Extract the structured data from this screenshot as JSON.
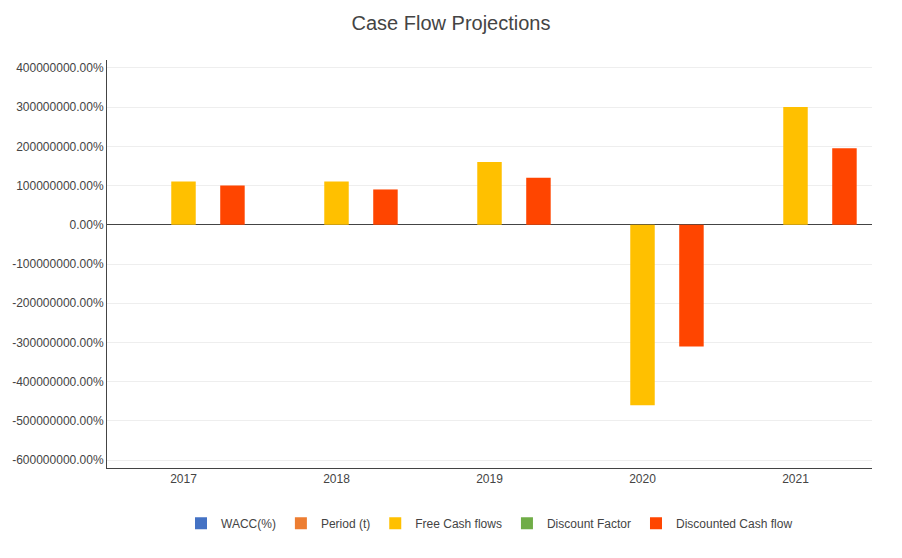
{
  "chart_data": {
    "type": "bar",
    "title": "Case Flow Projections",
    "categories": [
      "2017",
      "2018",
      "2019",
      "2020",
      "2021"
    ],
    "series": [
      {
        "name": "WACC(%)",
        "color": "#4472C4",
        "values": [
          0,
          0,
          0,
          0,
          0
        ]
      },
      {
        "name": "Period (t)",
        "color": "#ED7D31",
        "values": [
          0,
          0,
          0,
          0,
          0
        ]
      },
      {
        "name": "Free Cash flows",
        "color": "#FFC000",
        "values": [
          110000000,
          110000000,
          160000000,
          -460000000,
          300000000
        ]
      },
      {
        "name": "Discount Factor",
        "color": "#70AD47",
        "values": [
          0,
          0,
          0,
          0,
          0
        ]
      },
      {
        "name": "Discounted Cash flow",
        "color": "#FF4500",
        "values": [
          100000000,
          90000000,
          120000000,
          -310000000,
          195000000
        ]
      }
    ],
    "ylim": [
      -620000000,
      420000000
    ],
    "yticks": [
      {
        "value": -600000000,
        "label": "-600000000.00%"
      },
      {
        "value": -500000000,
        "label": "-500000000.00%"
      },
      {
        "value": -400000000,
        "label": "-400000000.00%"
      },
      {
        "value": -300000000,
        "label": "-300000000.00%"
      },
      {
        "value": -200000000,
        "label": "-200000000.00%"
      },
      {
        "value": -100000000,
        "label": "-100000000.00%"
      },
      {
        "value": 0,
        "label": "0.00%"
      },
      {
        "value": 100000000,
        "label": "100000000.00%"
      },
      {
        "value": 200000000,
        "label": "200000000.00%"
      },
      {
        "value": 300000000,
        "label": "300000000.00%"
      },
      {
        "value": 400000000,
        "label": "400000000.00%"
      }
    ],
    "grid": true,
    "legend": "bottom"
  }
}
